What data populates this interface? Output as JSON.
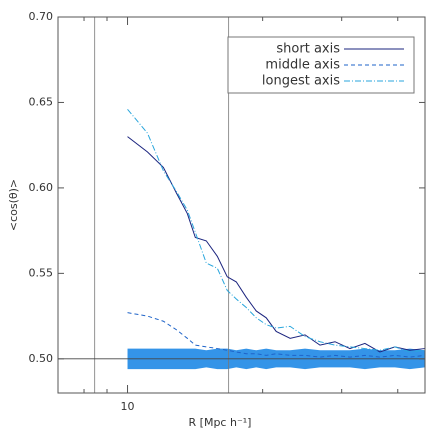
{
  "chart_data": {
    "type": "line",
    "xlabel": "R [Mpc h⁻¹]",
    "ylabel": "<cos(θ)>",
    "x": [
      10,
      11.08,
      12.02,
      12.85,
      13.59,
      14.16,
      14.98,
      15.85,
      16.68,
      17.47,
      18.39,
      19.35,
      20.37,
      21.44,
      23.03,
      24.86,
      26.84,
      28.99,
      31.3,
      33.8,
      36.5,
      39.41,
      42.55,
      45.94
    ],
    "series": [
      {
        "name": "short axis",
        "color": "#1a237e",
        "dash": "solid",
        "values": [
          0.63,
          0.621,
          0.612,
          0.597,
          0.585,
          0.571,
          0.569,
          0.56,
          0.548,
          0.545,
          0.536,
          0.528,
          0.524,
          0.516,
          0.512,
          0.514,
          0.508,
          0.51,
          0.506,
          0.509,
          0.504,
          0.507,
          0.505,
          0.506
        ]
      },
      {
        "name": "middle axis",
        "color": "#1e63c8",
        "dash": "dashed",
        "values": [
          0.527,
          0.525,
          0.522,
          0.517,
          0.512,
          0.508,
          0.507,
          0.506,
          0.505,
          0.504,
          0.503,
          0.503,
          0.502,
          0.503,
          0.502,
          0.502,
          0.501,
          0.502,
          0.501,
          0.502,
          0.501,
          0.502,
          0.501,
          0.502
        ]
      },
      {
        "name": "longest axis",
        "color": "#2aa6dc",
        "dash": "dashdot",
        "values": [
          0.646,
          0.632,
          0.61,
          0.598,
          0.587,
          0.574,
          0.556,
          0.553,
          0.54,
          0.535,
          0.53,
          0.524,
          0.52,
          0.518,
          0.519,
          0.513,
          0.51,
          0.508,
          0.507,
          0.506,
          0.505,
          0.507,
          0.504,
          0.505
        ]
      }
    ],
    "band": {
      "color": "#1e88e5",
      "upper": [
        0.506,
        0.506,
        0.506,
        0.506,
        0.506,
        0.506,
        0.505,
        0.506,
        0.506,
        0.505,
        0.506,
        0.505,
        0.506,
        0.505,
        0.505,
        0.506,
        0.505,
        0.505,
        0.505,
        0.506,
        0.505,
        0.505,
        0.506,
        0.505
      ],
      "lower": [
        0.494,
        0.494,
        0.494,
        0.494,
        0.494,
        0.494,
        0.495,
        0.494,
        0.494,
        0.495,
        0.494,
        0.495,
        0.494,
        0.495,
        0.495,
        0.494,
        0.495,
        0.495,
        0.495,
        0.494,
        0.495,
        0.495,
        0.494,
        0.495
      ]
    },
    "xscale": "log",
    "xlim": [
      7,
      46
    ],
    "xticks": [
      10
    ],
    "xminor": [
      8,
      9,
      20,
      30,
      40
    ],
    "ylim": [
      0.48,
      0.7
    ],
    "yticks": [
      {
        "value": 0.5,
        "label": "0.50"
      },
      {
        "value": 0.55,
        "label": "0.55"
      },
      {
        "value": 0.6,
        "label": "0.60"
      },
      {
        "value": 0.65,
        "label": "0.65"
      },
      {
        "value": 0.7,
        "label": "0.70"
      }
    ],
    "vlines": [
      8.45,
      16.8
    ],
    "hlines": [
      0.5
    ],
    "legend": "upper right"
  }
}
